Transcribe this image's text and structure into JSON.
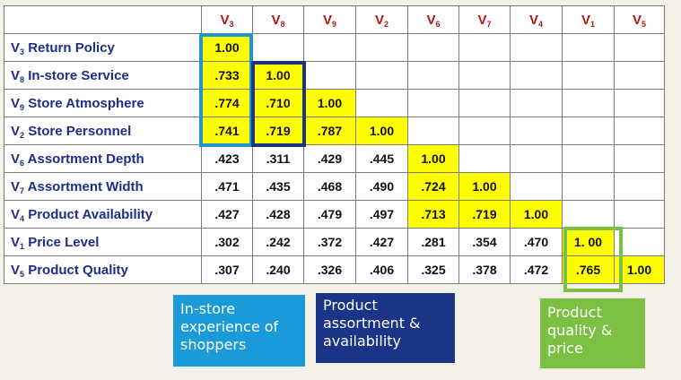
{
  "columns": [
    {
      "base": "V",
      "sub": "3"
    },
    {
      "base": "V",
      "sub": "8"
    },
    {
      "base": "V",
      "sub": "9"
    },
    {
      "base": "V",
      "sub": "2"
    },
    {
      "base": "V",
      "sub": "6"
    },
    {
      "base": "V",
      "sub": "7"
    },
    {
      "base": "V",
      "sub": "4"
    },
    {
      "base": "V",
      "sub": "1"
    },
    {
      "base": "V",
      "sub": "5"
    }
  ],
  "rows": [
    {
      "v": "V",
      "sub": "3",
      "name": "Return Policy",
      "values": [
        "1.00"
      ]
    },
    {
      "v": "V",
      "sub": "8",
      "name": "In-store Service",
      "values": [
        ".733",
        "1.00"
      ]
    },
    {
      "v": "V",
      "sub": "9",
      "name": "Store Atmosphere",
      "values": [
        ".774",
        ".710",
        "1.00"
      ]
    },
    {
      "v": "V",
      "sub": "2",
      "name": "Store Personnel",
      "values": [
        ".741",
        ".719",
        ".787",
        "1.00"
      ]
    },
    {
      "v": "V",
      "sub": "6",
      "name": "Assortment Depth",
      "values": [
        ".423",
        ".311",
        ".429",
        ".445",
        "1.00"
      ]
    },
    {
      "v": "V",
      "sub": "7",
      "name": "Assortment Width",
      "values": [
        ".471",
        ".435",
        ".468",
        ".490",
        ".724",
        "1.00"
      ]
    },
    {
      "v": "V",
      "sub": "4",
      "name": "Product Availability",
      "values": [
        ".427",
        ".428",
        ".479",
        ".497",
        ".713",
        ".719",
        "1.00"
      ]
    },
    {
      "v": "V",
      "sub": "1",
      "name": "Price Level",
      "values": [
        ".302",
        ".242",
        ".372",
        ".427",
        ".281",
        ".354",
        ".470",
        "1. 00"
      ]
    },
    {
      "v": "V",
      "sub": "5",
      "name": "Product Quality",
      "values": [
        ".307",
        ".240",
        ".326",
        ".406",
        ".325",
        ".378",
        ".472",
        ".765",
        "1.00"
      ]
    }
  ],
  "highlighted_cells": [
    [
      0,
      0
    ],
    [
      1,
      0
    ],
    [
      1,
      1
    ],
    [
      2,
      0
    ],
    [
      2,
      1
    ],
    [
      2,
      2
    ],
    [
      3,
      0
    ],
    [
      3,
      1
    ],
    [
      3,
      2
    ],
    [
      3,
      3
    ],
    [
      4,
      4
    ],
    [
      5,
      4
    ],
    [
      5,
      5
    ],
    [
      6,
      4
    ],
    [
      6,
      5
    ],
    [
      6,
      6
    ],
    [
      7,
      7
    ],
    [
      8,
      7
    ],
    [
      8,
      8
    ]
  ],
  "colors": {
    "highlight": "#ffff00",
    "column_header": "#b01818",
    "row_label": "#1d2e8a",
    "group1": "#1e96d6",
    "group2": "#1a3588",
    "group3": "#7bc043",
    "background": "#f3f1e8"
  },
  "captions": {
    "group1": "In-store\nexperience of\nshoppers",
    "group2": "Product\nassortment &\navailability",
    "group3": "Product\nquality &\nprice"
  }
}
